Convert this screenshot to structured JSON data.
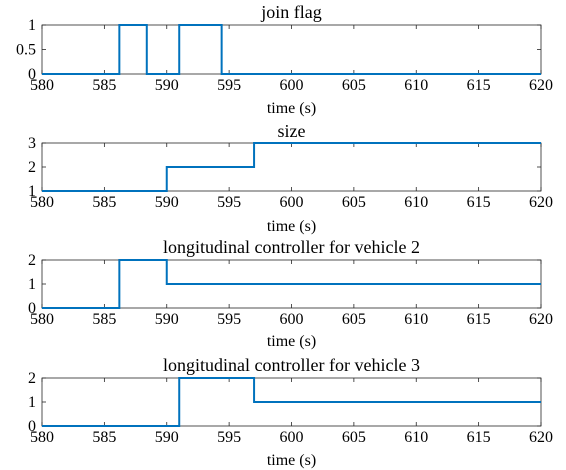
{
  "chart_data": [
    {
      "type": "line",
      "title": "join flag",
      "xlabel": "time (s)",
      "ylabel": "",
      "xlim": [
        580,
        620
      ],
      "ylim": [
        0,
        1
      ],
      "x_ticks": [
        "580",
        "585",
        "590",
        "595",
        "600",
        "605",
        "610",
        "615",
        "620"
      ],
      "y_ticks": [
        "0",
        "0.5",
        "1"
      ],
      "grid": false,
      "line_color": "#0072BD",
      "series": [
        {
          "x": [
            580,
            586.2,
            586.2,
            588.4,
            588.4,
            591.0,
            591.0,
            594.4,
            594.4,
            620
          ],
          "y": [
            0,
            0,
            1,
            1,
            0,
            0,
            1,
            1,
            0,
            0
          ]
        }
      ]
    },
    {
      "type": "line",
      "title": "size",
      "xlabel": "time (s)",
      "ylabel": "",
      "xlim": [
        580,
        620
      ],
      "ylim": [
        1,
        3
      ],
      "x_ticks": [
        "580",
        "585",
        "590",
        "595",
        "600",
        "605",
        "610",
        "615",
        "620"
      ],
      "y_ticks": [
        "1",
        "2",
        "3"
      ],
      "grid": false,
      "line_color": "#0072BD",
      "series": [
        {
          "x": [
            580,
            590.0,
            590.0,
            597.0,
            597.0,
            620
          ],
          "y": [
            1,
            1,
            2,
            2,
            3,
            3
          ]
        }
      ]
    },
    {
      "type": "line",
      "title": "longitudinal controller for vehicle 2",
      "xlabel": "time (s)",
      "ylabel": "",
      "xlim": [
        580,
        620
      ],
      "ylim": [
        0,
        2
      ],
      "x_ticks": [
        "580",
        "585",
        "590",
        "595",
        "600",
        "605",
        "610",
        "615",
        "620"
      ],
      "y_ticks": [
        "0",
        "1",
        "2"
      ],
      "grid": false,
      "line_color": "#0072BD",
      "series": [
        {
          "x": [
            580,
            586.2,
            586.2,
            590.0,
            590.0,
            620
          ],
          "y": [
            0,
            0,
            2,
            2,
            1,
            1
          ]
        }
      ]
    },
    {
      "type": "line",
      "title": "longitudinal controller for vehicle 3",
      "xlabel": "time (s)",
      "ylabel": "",
      "xlim": [
        580,
        620
      ],
      "ylim": [
        0,
        2
      ],
      "x_ticks": [
        "580",
        "585",
        "590",
        "595",
        "600",
        "605",
        "610",
        "615",
        "620"
      ],
      "y_ticks": [
        "0",
        "1",
        "2"
      ],
      "grid": false,
      "line_color": "#0072BD",
      "series": [
        {
          "x": [
            580,
            591.0,
            591.0,
            597.0,
            597.0,
            620
          ],
          "y": [
            0,
            0,
            2,
            2,
            1,
            1
          ]
        }
      ]
    }
  ]
}
